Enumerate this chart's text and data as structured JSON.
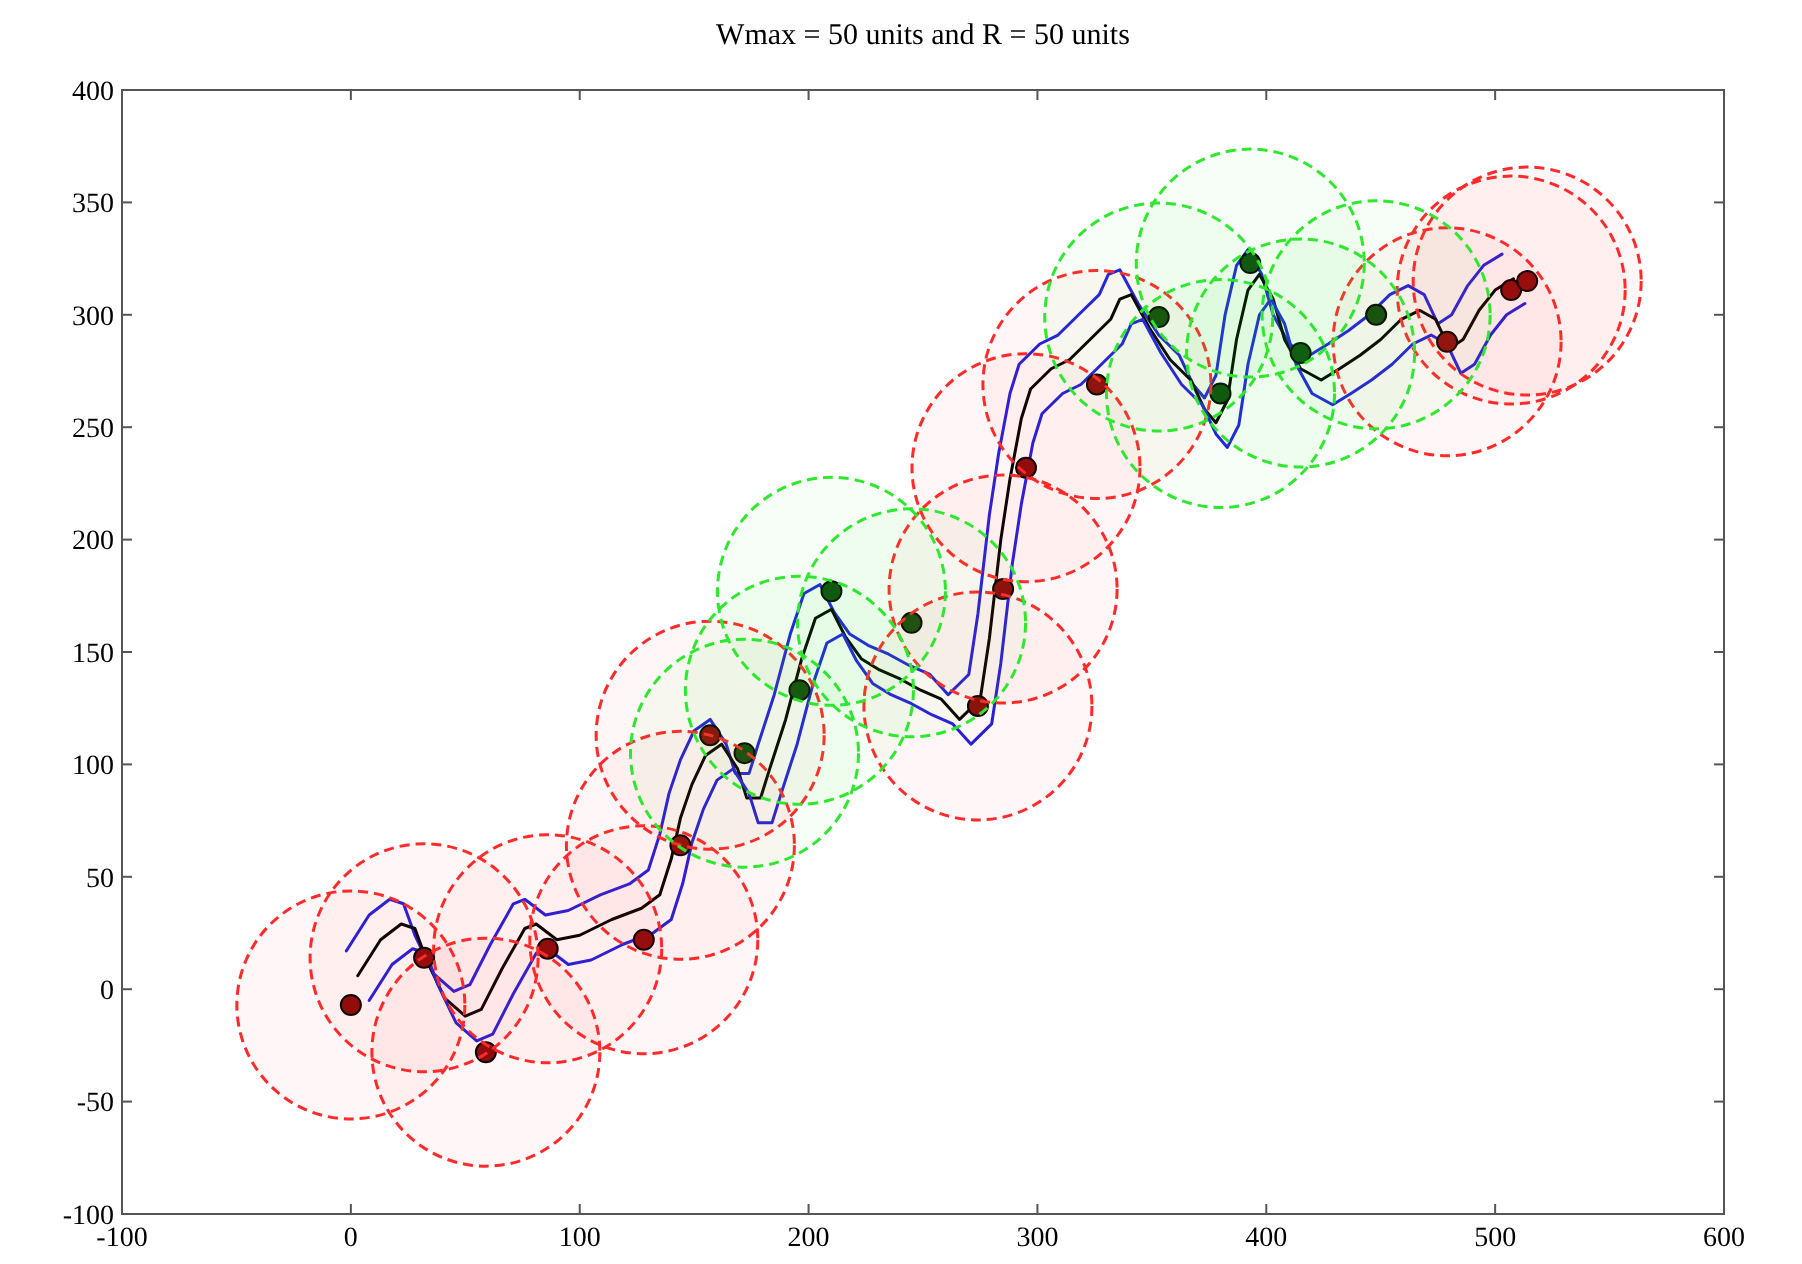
{
  "chart_data": {
    "type": "scatter",
    "title": "Wmax = 50 units and R = 50 units",
    "xlim": [
      -100,
      600
    ],
    "ylim": [
      -100,
      400
    ],
    "xticks": [
      -100,
      0,
      100,
      200,
      300,
      400,
      500,
      600
    ],
    "yticks": [
      -100,
      -50,
      0,
      50,
      100,
      150,
      200,
      250,
      300,
      350,
      400
    ],
    "grid": false,
    "series": [
      {
        "type": "bubble",
        "color": "#ff2a2a",
        "line_style": "dashed",
        "x": [
          0,
          32,
          59,
          86,
          128,
          144,
          157,
          274,
          285,
          295,
          326,
          479,
          507,
          514
        ],
        "values": [
          -7,
          14,
          -28,
          18,
          22,
          64,
          113,
          126,
          178,
          232,
          269,
          288,
          311,
          315
        ],
        "sizes": [
          1,
          1,
          1,
          1,
          1,
          1,
          1,
          1,
          1,
          1,
          1,
          1,
          1,
          1
        ]
      },
      {
        "type": "bubble",
        "color": "#2ee82e",
        "line_style": "dashed",
        "x": [
          172,
          196,
          210,
          245,
          353,
          380,
          393,
          415,
          448
        ],
        "values": [
          105,
          133,
          177,
          163,
          299,
          265,
          323,
          283,
          300
        ],
        "sizes": [
          1,
          1,
          1,
          1,
          1,
          1,
          1,
          1,
          1
        ]
      },
      {
        "type": "line",
        "color": "#2020e0",
        "line_style": "solid",
        "x": [
          -2,
          8,
          17,
          23,
          28,
          36,
          45,
          52,
          61,
          71,
          76,
          85,
          95,
          109,
          122,
          130,
          135,
          139,
          144,
          150,
          157,
          164,
          168,
          174,
          178,
          185,
          192,
          198,
          205,
          211,
          218,
          226,
          235,
          244,
          253,
          261,
          270,
          274,
          279,
          283,
          288,
          292,
          301,
          309,
          318,
          327,
          331,
          336,
          344,
          353,
          362,
          368,
          373,
          378,
          382,
          387,
          392,
          398,
          403,
          410,
          419,
          427,
          436,
          445,
          454,
          462,
          469,
          475,
          481,
          488,
          495,
          503
        ],
        "values": [
          17,
          33,
          40,
          38,
          24,
          7,
          -1,
          2,
          20,
          38,
          40,
          33,
          35,
          42,
          47,
          53,
          69,
          87,
          102,
          115,
          120,
          109,
          96,
          96,
          109,
          131,
          158,
          176,
          180,
          168,
          158,
          153,
          149,
          144,
          140,
          131,
          140,
          167,
          211,
          238,
          265,
          278,
          287,
          291,
          300,
          309,
          318,
          320,
          305,
          291,
          282,
          269,
          263,
          273,
          300,
          322,
          329,
          318,
          300,
          287,
          282,
          287,
          293,
          300,
          309,
          313,
          309,
          296,
          300,
          313,
          322,
          327
        ]
      },
      {
        "type": "line",
        "color": "#000000",
        "line_style": "solid",
        "x": [
          3,
          13,
          22,
          28,
          33,
          41,
          50,
          57,
          66,
          76,
          81,
          90,
          100,
          114,
          127,
          135,
          140,
          144,
          149,
          155,
          162,
          169,
          173,
          179,
          183,
          190,
          197,
          203,
          210,
          216,
          223,
          231,
          240,
          249,
          258,
          266,
          275,
          279,
          284,
          288,
          293,
          297,
          306,
          314,
          323,
          332,
          336,
          341,
          349,
          358,
          367,
          373,
          378,
          383,
          387,
          392,
          397,
          403,
          408,
          415,
          424,
          432,
          441,
          450,
          459,
          467,
          474,
          480,
          486,
          493,
          500,
          508
        ],
        "values": [
          6,
          22,
          29,
          27,
          13,
          -4,
          -12,
          -9,
          9,
          27,
          29,
          22,
          24,
          31,
          36,
          42,
          58,
          76,
          91,
          104,
          109,
          98,
          85,
          85,
          98,
          120,
          147,
          165,
          169,
          157,
          147,
          142,
          138,
          133,
          129,
          120,
          129,
          156,
          200,
          227,
          254,
          267,
          276,
          280,
          289,
          298,
          307,
          309,
          294,
          280,
          271,
          258,
          252,
          262,
          289,
          311,
          318,
          307,
          289,
          276,
          271,
          276,
          282,
          289,
          298,
          302,
          298,
          285,
          289,
          302,
          311,
          316
        ]
      },
      {
        "type": "line",
        "color": "#2020e0",
        "line_style": "solid",
        "x": [
          8,
          18,
          27,
          33,
          38,
          46,
          55,
          62,
          71,
          81,
          86,
          95,
          105,
          119,
          132,
          140,
          145,
          149,
          154,
          160,
          167,
          174,
          178,
          184,
          188,
          195,
          202,
          208,
          215,
          221,
          228,
          236,
          245,
          254,
          263,
          271,
          280,
          284,
          289,
          293,
          298,
          302,
          311,
          319,
          328,
          337,
          341,
          346,
          354,
          363,
          372,
          378,
          383,
          388,
          392,
          397,
          402,
          408,
          413,
          420,
          429,
          437,
          446,
          455,
          464,
          472,
          479,
          485,
          491,
          498,
          505,
          513
        ],
        "values": [
          -5,
          11,
          18,
          16,
          2,
          -15,
          -23,
          -20,
          -2,
          16,
          18,
          11,
          13,
          20,
          25,
          31,
          47,
          65,
          80,
          93,
          98,
          87,
          74,
          74,
          87,
          109,
          136,
          154,
          158,
          146,
          136,
          131,
          127,
          122,
          118,
          109,
          118,
          145,
          189,
          216,
          243,
          256,
          265,
          269,
          278,
          287,
          296,
          298,
          283,
          269,
          260,
          247,
          241,
          251,
          278,
          300,
          307,
          296,
          278,
          265,
          260,
          265,
          271,
          278,
          287,
          291,
          287,
          274,
          278,
          291,
          300,
          305
        ]
      },
      {
        "marker": "circle",
        "color": "#8a0a0a",
        "x": [
          0,
          32,
          59,
          86,
          128,
          144,
          157,
          274,
          285,
          295,
          326,
          479,
          507,
          514
        ],
        "values": [
          -7,
          14,
          -28,
          18,
          22,
          64,
          113,
          126,
          178,
          232,
          269,
          288,
          311,
          315
        ]
      },
      {
        "marker": "circle",
        "color": "#0c4a0c",
        "x": [
          172,
          196,
          210,
          245,
          353,
          380,
          393,
          415,
          448
        ],
        "values": [
          105,
          133,
          177,
          163,
          299,
          265,
          323,
          283,
          300
        ]
      }
    ]
  }
}
